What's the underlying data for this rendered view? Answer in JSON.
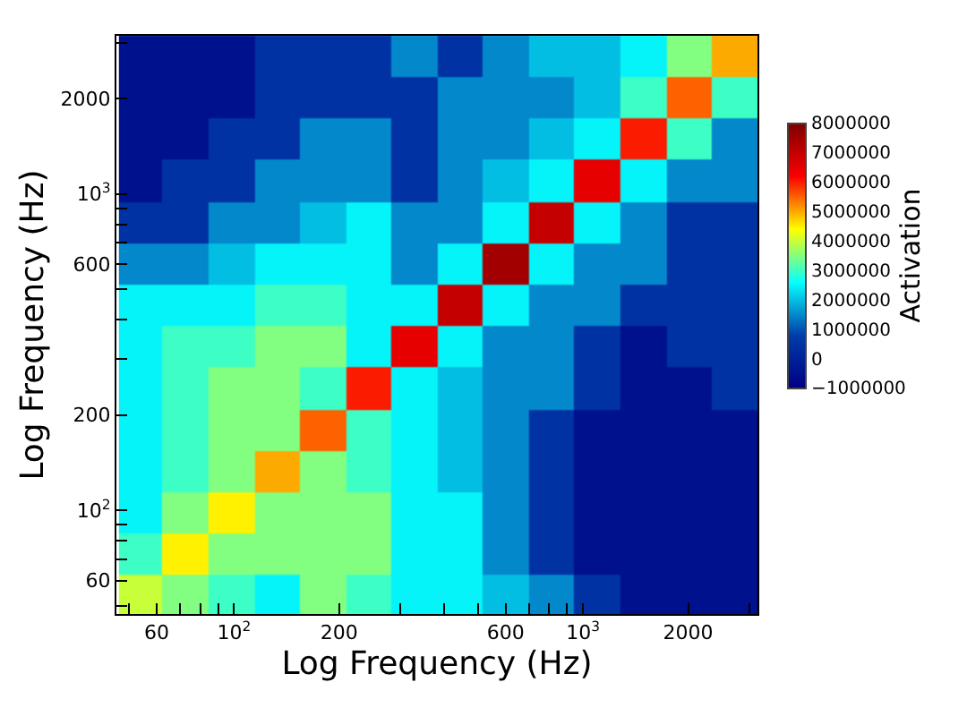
{
  "chart_data": {
    "type": "heatmap",
    "xlabel": "Log Frequency (Hz)",
    "ylabel": "Log Frequency (Hz)",
    "clabel": "Activation",
    "log": "xy",
    "x": [
      54,
      72,
      98,
      133,
      179,
      243,
      328,
      444,
      600,
      812,
      1099,
      1486,
      2009,
      2716
    ],
    "y": [
      2716,
      2009,
      1486,
      1099,
      812,
      600,
      444,
      328,
      243,
      179,
      133,
      98,
      72,
      54
    ],
    "xlim": [
      46,
      3160
    ],
    "ylim": [
      47,
      3160
    ],
    "xticks": [
      {
        "value": 50,
        "label": null
      },
      60,
      {
        "value": 70,
        "label": null
      },
      {
        "value": 80,
        "label": null
      },
      {
        "value": 90,
        "label": null
      },
      {
        "value": 100,
        "label": "10$^{2}$"
      },
      200,
      {
        "value": 300,
        "label": null
      },
      {
        "value": 400,
        "label": null
      },
      {
        "value": 500,
        "label": null
      },
      600,
      {
        "value": 700,
        "label": null
      },
      {
        "value": 800,
        "label": null
      },
      {
        "value": 900,
        "label": null
      },
      {
        "value": 1000,
        "label": "10$^{3}$"
      },
      2000,
      {
        "value": 3000,
        "label": null
      }
    ],
    "yticks": [
      {
        "value": 50,
        "label": null
      },
      60,
      {
        "value": 70,
        "label": null
      },
      {
        "value": 80,
        "label": null
      },
      {
        "value": 90,
        "label": null
      },
      {
        "value": 100,
        "label": "10$^{2}$"
      },
      200,
      {
        "value": 300,
        "label": null
      },
      {
        "value": 400,
        "label": null
      },
      {
        "value": 500,
        "label": null
      },
      600,
      {
        "value": 700,
        "label": null
      },
      {
        "value": 800,
        "label": null
      },
      {
        "value": 900,
        "label": null
      },
      {
        "value": 1000,
        "label": "10$^{3}$"
      },
      2000,
      {
        "value": 3000,
        "label": null
      }
    ],
    "clim": [
      -1000000,
      8000000
    ],
    "cticks": [
      -1000000,
      0,
      1000000,
      2000000,
      3000000,
      4000000,
      5000000,
      6000000,
      7000000,
      8000000
    ],
    "cells": [
      [
        -500000,
        -500000,
        -500000,
        500000,
        500000,
        500000,
        1500000,
        500000,
        1500000,
        2000000,
        2000000,
        2500000,
        3500000,
        5000000
      ],
      [
        -500000,
        -500000,
        -500000,
        500000,
        500000,
        500000,
        500000,
        1500000,
        1500000,
        1500000,
        2000000,
        3000000,
        5500000,
        3000000
      ],
      [
        -500000,
        -500000,
        500000,
        500000,
        1500000,
        1500000,
        500000,
        1500000,
        1500000,
        2000000,
        2500000,
        6000000,
        3000000,
        1500000
      ],
      [
        -500000,
        500000,
        500000,
        1500000,
        1500000,
        1500000,
        500000,
        1500000,
        2000000,
        2500000,
        6500000,
        2500000,
        1500000,
        1500000
      ],
      [
        500000,
        500000,
        1500000,
        1500000,
        2000000,
        2500000,
        1500000,
        1500000,
        2500000,
        7000000,
        2500000,
        1500000,
        500000,
        500000
      ],
      [
        1500000,
        1500000,
        2000000,
        2500000,
        2500000,
        2500000,
        1500000,
        2500000,
        7500000,
        2500000,
        1500000,
        1500000,
        500000,
        500000
      ],
      [
        2500000,
        2500000,
        2500000,
        3000000,
        3000000,
        2500000,
        2500000,
        7000000,
        2500000,
        1500000,
        1500000,
        500000,
        500000,
        500000
      ],
      [
        2500000,
        3000000,
        3000000,
        3500000,
        3500000,
        2500000,
        6500000,
        2500000,
        1500000,
        1500000,
        500000,
        -500000,
        500000,
        500000
      ],
      [
        2500000,
        3000000,
        3500000,
        3500000,
        3000000,
        6000000,
        2500000,
        2000000,
        1500000,
        1500000,
        500000,
        -500000,
        -500000,
        500000
      ],
      [
        2500000,
        3000000,
        3500000,
        3500000,
        5500000,
        3000000,
        2500000,
        2000000,
        1500000,
        500000,
        -500000,
        -500000,
        -500000,
        -500000
      ],
      [
        2500000,
        3000000,
        3500000,
        5000000,
        3500000,
        3000000,
        2500000,
        2000000,
        1500000,
        500000,
        -500000,
        -500000,
        -500000,
        -500000
      ],
      [
        2500000,
        3500000,
        4500000,
        3500000,
        3500000,
        3500000,
        2500000,
        2500000,
        1500000,
        500000,
        -500000,
        -500000,
        -500000,
        -500000
      ],
      [
        3000000,
        4500000,
        3500000,
        3500000,
        3500000,
        3500000,
        2500000,
        2500000,
        1500000,
        500000,
        -500000,
        -500000,
        -500000,
        -500000
      ],
      [
        4000000,
        3500000,
        3000000,
        2500000,
        3500000,
        3000000,
        2500000,
        2500000,
        2000000,
        1500000,
        500000,
        -500000,
        -500000,
        -500000
      ]
    ]
  }
}
